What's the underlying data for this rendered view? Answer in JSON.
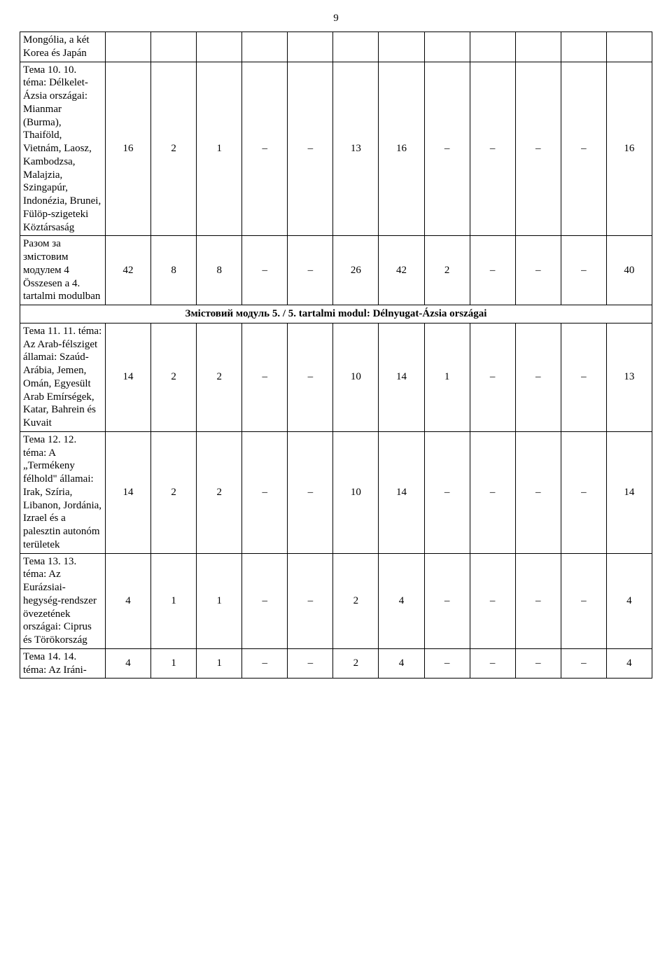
{
  "page_number": "9",
  "section_header": {
    "prefix": "Змістовий модуль 5. / 5. tartalmi modul: ",
    "bold_part": "Délnyugat-Ázsia országai"
  },
  "rows": [
    {
      "label": "Mongólia, a két Korea és Japán",
      "cells": [
        "",
        "",
        "",
        "",
        "",
        "",
        "",
        "",
        "",
        "",
        "",
        ""
      ]
    },
    {
      "label": "Тема 10. 10. téma: Délkelet-Ázsia országai: Mianmar (Burma), Thaiföld, Vietnám, Laosz, Kambodzsa, Malajzia, Szingapúr, Indonézia, Brunei, Fülöp-szigeteki Köztársaság",
      "cells": [
        "16",
        "2",
        "1",
        "–",
        "–",
        "13",
        "16",
        "–",
        "–",
        "–",
        "–",
        "16"
      ]
    },
    {
      "label": "Разом за змістовим модулем 4 Összesen a 4. tartalmi modulban",
      "cells": [
        "42",
        "8",
        "8",
        "–",
        "–",
        "26",
        "42",
        "2",
        "–",
        "–",
        "–",
        "40"
      ]
    }
  ],
  "rows_after": [
    {
      "label": "Тема 11. 11. téma: Az Arab-félsziget államai: Szaúd-Arábia, Jemen, Omán, Egyesült Arab Emírségek, Katar, Bahrein és Kuvait",
      "cells": [
        "14",
        "2",
        "2",
        "–",
        "–",
        "10",
        "14",
        "1",
        "–",
        "–",
        "–",
        "13"
      ]
    },
    {
      "label": "Тема 12. 12. téma: A „Termékeny félhold\" államai: Irak, Szíria, Libanon, Jordánia, Izrael és a palesztin autonóm területek",
      "cells": [
        "14",
        "2",
        "2",
        "–",
        "–",
        "10",
        "14",
        "–",
        "–",
        "–",
        "–",
        "14"
      ]
    },
    {
      "label": "Тема 13. 13. téma: Az Eurázsiai-hegység-rendszer övezetének országai: Ciprus és Törökország",
      "cells": [
        "4",
        "1",
        "1",
        "–",
        "–",
        "2",
        "4",
        "–",
        "–",
        "–",
        "–",
        "4"
      ]
    },
    {
      "label": "Тема 14. 14. téma: Az Iráni-",
      "cells": [
        "4",
        "1",
        "1",
        "–",
        "–",
        "2",
        "4",
        "–",
        "–",
        "–",
        "–",
        "4"
      ]
    }
  ]
}
